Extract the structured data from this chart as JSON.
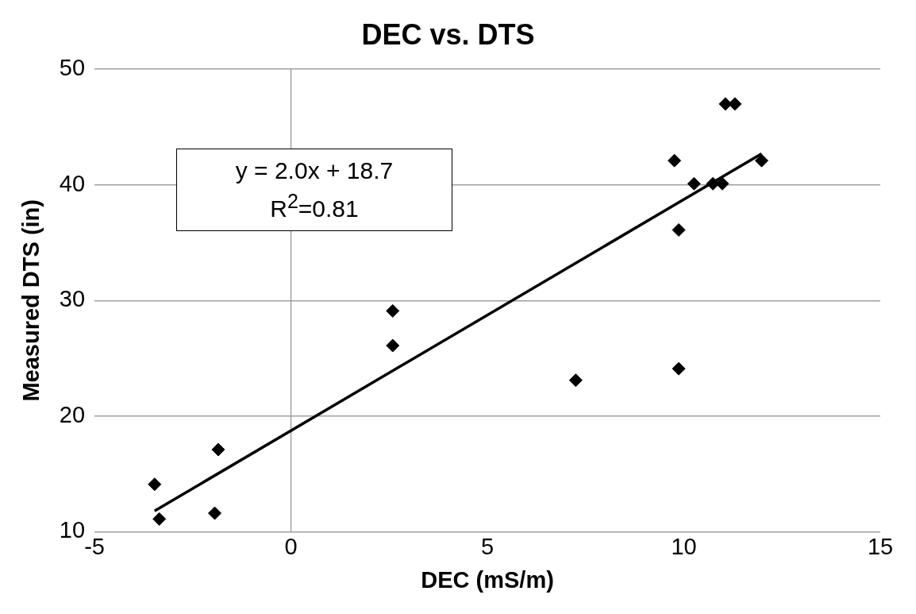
{
  "chart_data": {
    "type": "scatter",
    "title": "DEC vs. DTS",
    "xlabel": "DEC (mS/m)",
    "ylabel": "Measured DTS (in)",
    "x": [
      -3.47,
      -3.35,
      -1.85,
      -1.94,
      2.59,
      2.59,
      7.25,
      9.87,
      9.87,
      9.76,
      10.26,
      10.74,
      10.98,
      11.06,
      11.3,
      11.98
    ],
    "series": [
      {
        "type": "scatter",
        "color": "#000000",
        "marker": "diamond",
        "values": [
          14.1,
          11.1,
          17.1,
          11.6,
          29.1,
          26.1,
          23.1,
          24.1,
          36.1,
          42.1,
          40.1,
          40.1,
          40.1,
          47,
          47,
          42.1
        ]
      },
      {
        "type": "line",
        "color": "#000000",
        "x": [
          -3.47,
          11.98
        ],
        "values": [
          11.8,
          42.7
        ]
      }
    ],
    "xlim": [
      -5,
      15
    ],
    "xticks": [
      -5,
      0,
      5,
      10,
      15
    ],
    "ylim": [
      10,
      50
    ],
    "yticks": [
      10,
      20,
      30,
      40,
      50
    ],
    "grid": "y",
    "legend": false,
    "ref_lines": [
      {
        "axis": "x",
        "value": 0,
        "color": "#a0a0a0"
      }
    ],
    "annotations": [
      "y = 2.0x + 18.7\nR$^{2}$=0.81"
    ]
  }
}
